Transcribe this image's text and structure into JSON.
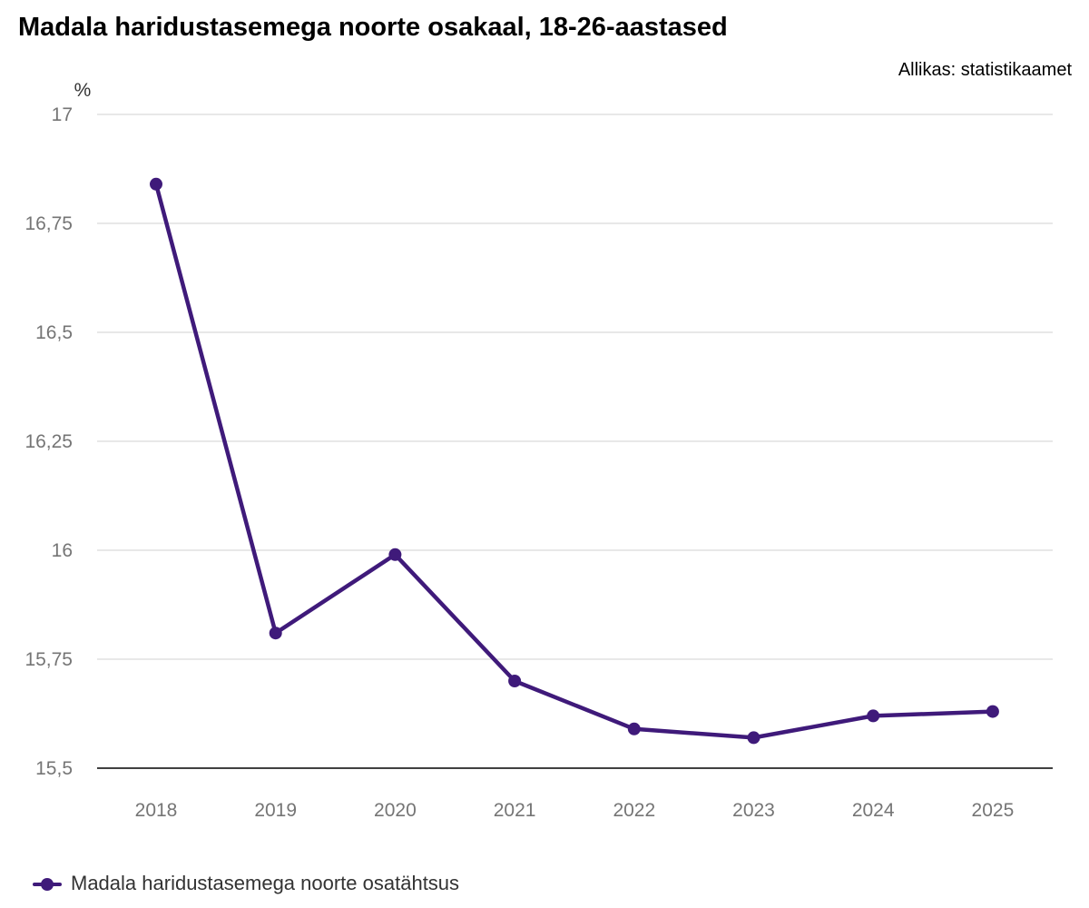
{
  "page": {
    "title": "Madala haridustasemega noorte osakaal, 18-26-aastased",
    "source": "Allikas: statistikaamet"
  },
  "chart_data": {
    "type": "line",
    "categories": [
      "2018",
      "2019",
      "2020",
      "2021",
      "2022",
      "2023",
      "2024",
      "2025"
    ],
    "series": [
      {
        "name": "Madala haridustasemega noorte osatähtsus",
        "color": "#3f1a7a",
        "values": [
          16.84,
          15.81,
          15.99,
          15.7,
          15.59,
          15.57,
          15.62,
          15.63
        ]
      }
    ],
    "ylabel": "%",
    "ylim": [
      15.5,
      17
    ],
    "yticks": [
      {
        "value": 17,
        "label": "17"
      },
      {
        "value": 16.75,
        "label": "16,75"
      },
      {
        "value": 16.5,
        "label": "16,5"
      },
      {
        "value": 16.25,
        "label": "16,25"
      },
      {
        "value": 16,
        "label": "16"
      },
      {
        "value": 15.75,
        "label": "15,75"
      },
      {
        "value": 15.5,
        "label": "15,5"
      }
    ],
    "grid": true,
    "legend_position": "bottom-left"
  }
}
